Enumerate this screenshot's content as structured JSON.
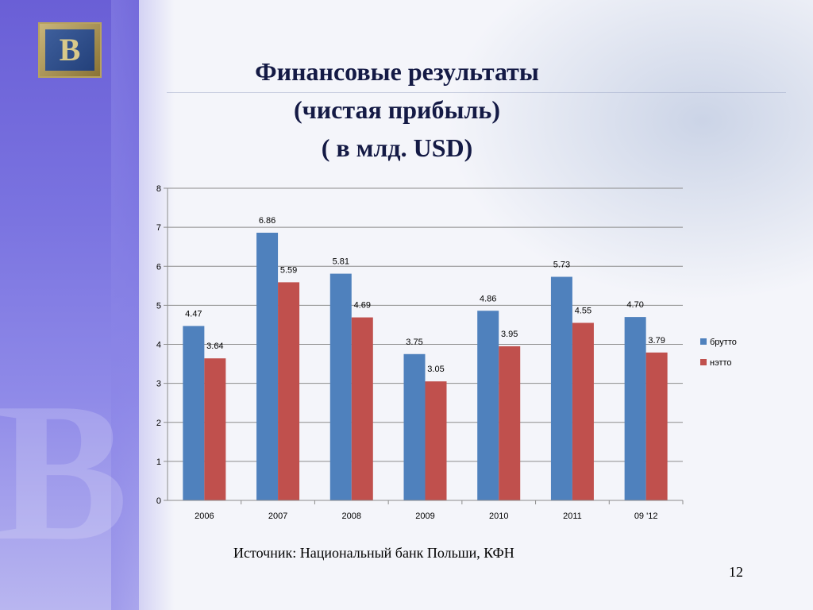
{
  "title": {
    "line1": "Финансовые результаты",
    "line2": "(чистая прибыль)",
    "line3": "( в млд. USD)"
  },
  "source": "Источник: Национальный банк Польши, КФН",
  "page_number": "12",
  "logo_letter": "B",
  "colors": {
    "brutto": "#4f81bd",
    "netto": "#c0504d",
    "grid": "#8c8c8c"
  },
  "chart_data": {
    "type": "bar",
    "categories": [
      "2006",
      "2007",
      "2008",
      "2009",
      "2010",
      "2011",
      "09 '12"
    ],
    "series": [
      {
        "name": "брутто",
        "values": [
          4.47,
          6.86,
          5.81,
          3.75,
          4.86,
          5.73,
          4.7
        ],
        "labels": [
          "4.47",
          "6.86",
          "5.81",
          "3.75",
          "4.86",
          "5.73",
          "4.70"
        ]
      },
      {
        "name": "нэтто",
        "values": [
          3.64,
          5.59,
          4.69,
          3.05,
          3.95,
          4.55,
          3.79
        ],
        "labels": [
          "3.64",
          "5.59",
          "4.69",
          "3.05",
          "3.95",
          "4.55",
          "3.79"
        ]
      }
    ],
    "ylim": [
      0,
      8
    ],
    "yticks": [
      "0",
      "1",
      "2",
      "3",
      "4",
      "5",
      "6",
      "7",
      "8"
    ],
    "grid": true,
    "legend": "right"
  }
}
